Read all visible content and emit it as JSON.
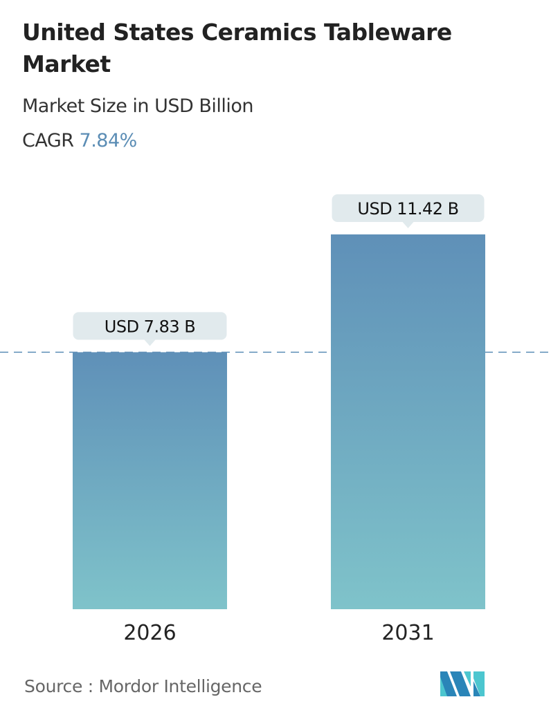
{
  "title": "United States Ceramics Tableware Market",
  "subtitle": "Market Size in USD Billion",
  "cagr_label": "CAGR",
  "cagr_value": "7.84%",
  "source": "Source :  Mordor Intelligence",
  "logo_text": "Mordor Intelligence",
  "chart_data": {
    "type": "bar",
    "categories": [
      "2026",
      "2031"
    ],
    "values": [
      7.83,
      11.42
    ],
    "data_labels": [
      "USD 7.83 B",
      "USD 11.42 B"
    ],
    "ylabel": "",
    "xlabel": "",
    "ylim": [
      0,
      11.42
    ],
    "grid": false,
    "reference_line": 7.83,
    "colors": {
      "bar_top": "#5f90b8",
      "bar_bottom": "#7fc3ca",
      "label_bg": "#e1eaed",
      "dashed_line": "#5b8db5"
    }
  }
}
